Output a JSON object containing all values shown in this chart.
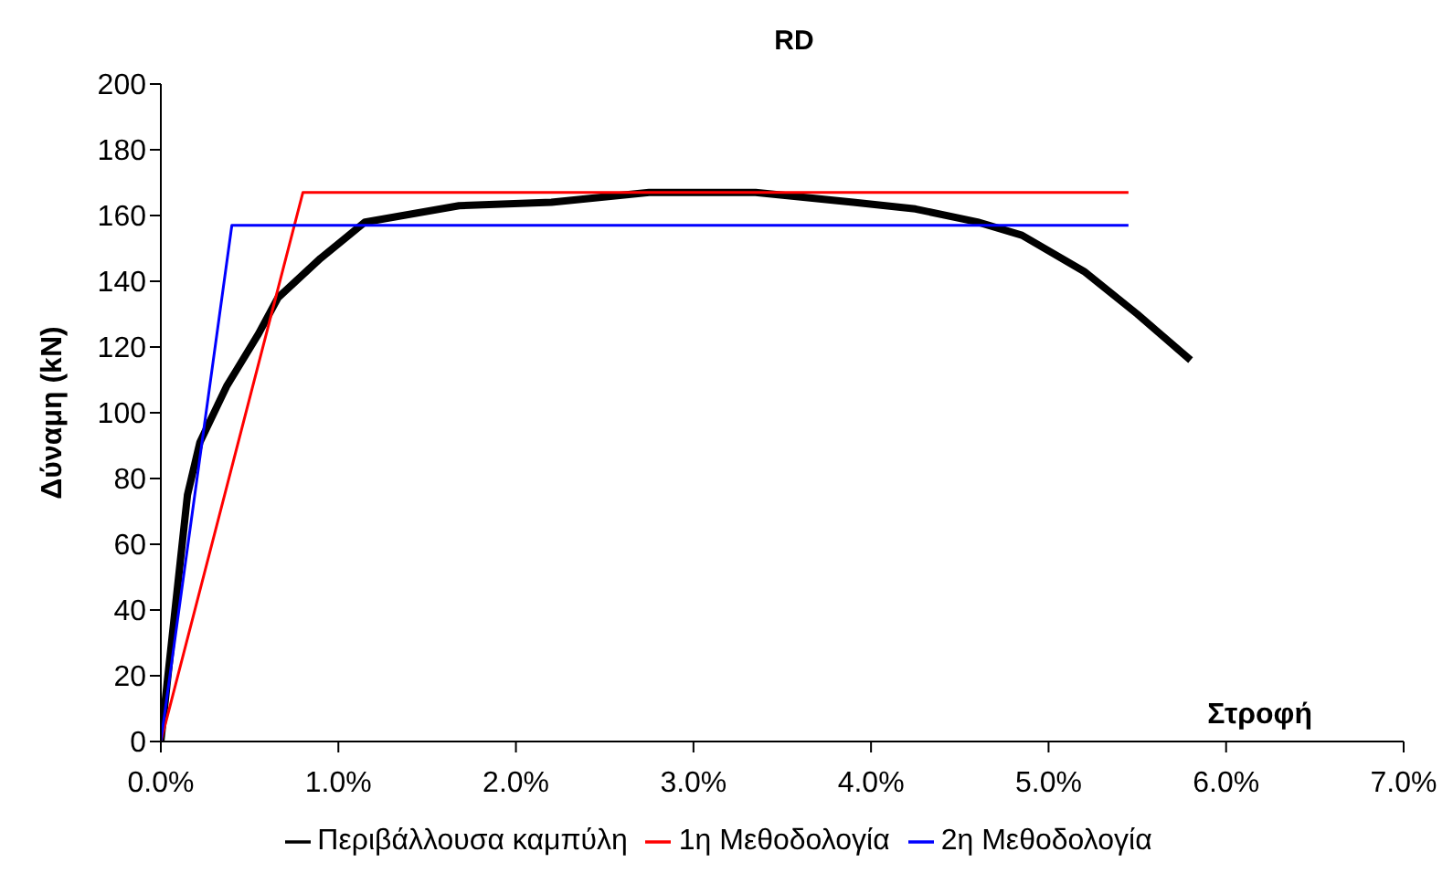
{
  "chart_data": {
    "type": "line",
    "title": "RD",
    "xlabel": "Στροφή",
    "ylabel": "Δύναμη (kN)",
    "xlim": [
      0,
      7
    ],
    "xticks": [
      {
        "value": 0,
        "label": "0.0%"
      },
      {
        "value": 1,
        "label": "1.0%"
      },
      {
        "value": 2,
        "label": "2.0%"
      },
      {
        "value": 3,
        "label": "3.0%"
      },
      {
        "value": 4,
        "label": "4.0%"
      },
      {
        "value": 5,
        "label": "5.0%"
      },
      {
        "value": 6,
        "label": "6.0%"
      },
      {
        "value": 7,
        "label": "7.0%"
      }
    ],
    "ylim": [
      0,
      200
    ],
    "yticks": [
      0,
      20,
      40,
      60,
      80,
      100,
      120,
      140,
      160,
      180,
      200
    ],
    "grid": false,
    "legend": "bottom",
    "marker": "none",
    "line_style": "solid",
    "series": [
      {
        "name": "Περιβάλλουσα καμπύλη",
        "color": "#000000",
        "x": [
          0,
          0.15,
          0.22,
          0.37,
          0.55,
          0.66,
          0.9,
          1.15,
          1.68,
          2.2,
          2.75,
          3.35,
          3.9,
          4.25,
          4.6,
          4.85,
          5.2,
          5.5,
          5.8
        ],
        "values": [
          0,
          75,
          91,
          108,
          124,
          135,
          147,
          158,
          163,
          164,
          167,
          167,
          164,
          162,
          158,
          154,
          143,
          130,
          116
        ]
      },
      {
        "name": "1η Μεθοδολογία",
        "color": "#ff0000",
        "x": [
          0,
          0.8,
          5.45
        ],
        "values": [
          0,
          167,
          167
        ]
      },
      {
        "name": "2η Μεθοδολογία",
        "color": "#0000ff",
        "x": [
          0,
          0.4,
          5.45
        ],
        "values": [
          0,
          157,
          157
        ]
      }
    ]
  }
}
